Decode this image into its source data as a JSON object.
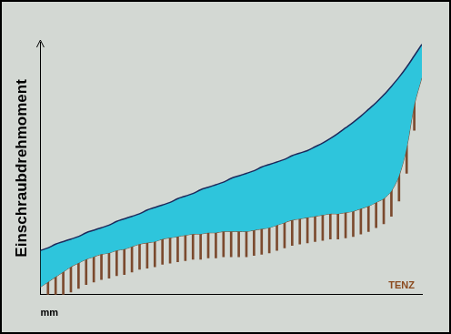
{
  "chart_data": {
    "type": "area",
    "y_label": "Einschraubdrehmoment",
    "x_label": "mm",
    "annotations": [
      "TENZ"
    ],
    "xlim": [
      0,
      100
    ],
    "ylim": [
      0,
      100
    ],
    "xticks": [],
    "yticks": [],
    "tick_labels": false,
    "grid": false,
    "series": [
      {
        "type": "area",
        "color": "#2ec5dc",
        "x": [
          0,
          2,
          4,
          6,
          8,
          10,
          12,
          14,
          16,
          18,
          20,
          22,
          24,
          26,
          28,
          30,
          32,
          34,
          36,
          38,
          40,
          42,
          44,
          46,
          48,
          50,
          52,
          54,
          56,
          58,
          60,
          62,
          64,
          66,
          68,
          70,
          72,
          74,
          76,
          78,
          80,
          82,
          84,
          86,
          88,
          90,
          92,
          94,
          96,
          98,
          100
        ],
        "values": [
          17.5,
          18.5,
          20,
          21,
          22,
          23,
          24.5,
          25.5,
          26.5,
          27.5,
          29,
          30,
          31,
          32,
          33.5,
          34.5,
          35.5,
          36.5,
          38,
          39,
          40,
          41.5,
          42.5,
          43.5,
          44.5,
          46,
          47,
          48,
          49,
          50.5,
          51.5,
          52.5,
          53.5,
          55,
          56,
          57,
          58.5,
          60,
          61.8,
          63.8,
          66,
          68.2,
          70.6,
          73.3,
          76,
          79,
          82.4,
          86,
          90,
          94.5,
          99
        ]
      },
      {
        "type": "line",
        "color": "#7b4a2e",
        "x": [
          0,
          2,
          4,
          6,
          8,
          10,
          12,
          14,
          16,
          18,
          20,
          22,
          24,
          26,
          28,
          30,
          32,
          34,
          36,
          38,
          40,
          42,
          44,
          46,
          48,
          50,
          52,
          54,
          56,
          58,
          60,
          62,
          64,
          66,
          68,
          70,
          72,
          74,
          76,
          78,
          80,
          82,
          84,
          86,
          88,
          90,
          92,
          94,
          96,
          98,
          100
        ],
        "values": [
          3,
          5,
          7,
          9,
          11,
          12.5,
          14,
          15,
          16,
          16.5,
          17.5,
          18,
          19,
          20,
          20.5,
          21,
          22,
          22.5,
          23,
          23.5,
          24,
          24,
          24.5,
          24.5,
          25,
          25,
          25,
          25,
          25.5,
          26,
          26.5,
          27.5,
          28.5,
          29.5,
          30,
          30.5,
          31,
          31.5,
          32,
          32,
          32.5,
          33,
          34,
          35,
          36.5,
          38,
          41,
          47,
          58,
          75,
          86
        ]
      },
      {
        "type": "bar",
        "color": "#7b4a2e",
        "x": [
          2,
          4,
          6,
          8,
          10,
          12,
          14,
          16,
          18,
          20,
          22,
          24,
          26,
          28,
          30,
          32,
          34,
          36,
          38,
          40,
          42,
          44,
          46,
          48,
          50,
          52,
          54,
          56,
          58,
          60,
          62,
          64,
          66,
          68,
          70,
          72,
          74,
          76,
          78,
          80,
          82,
          84,
          86,
          88,
          90,
          92,
          94,
          96,
          98
        ],
        "values": [
          [
            0,
            7
          ],
          [
            0,
            11
          ],
          [
            0,
            10
          ],
          [
            1,
            16
          ],
          [
            2.5,
            15.5
          ],
          [
            4,
            16
          ],
          [
            5,
            19
          ],
          [
            6,
            17
          ],
          [
            6.5,
            21.5
          ],
          [
            7.5,
            20.5
          ],
          [
            8,
            20
          ],
          [
            9,
            23
          ],
          [
            10,
            21
          ],
          [
            10.5,
            25.5
          ],
          [
            11,
            24
          ],
          [
            12,
            24
          ],
          [
            12.5,
            26.5
          ],
          [
            13,
            24
          ],
          [
            13.5,
            28.5
          ],
          [
            14,
            27
          ],
          [
            14,
            26
          ],
          [
            14.5,
            28.5
          ],
          [
            14.5,
            25.5
          ],
          [
            15,
            30
          ],
          [
            15,
            28
          ],
          [
            15,
            27
          ],
          [
            15,
            29
          ],
          [
            15.5,
            26.5
          ],
          [
            16,
            31
          ],
          [
            16.5,
            29.5
          ],
          [
            17.5,
            29.5
          ],
          [
            18.5,
            32.5
          ],
          [
            19.5,
            30.5
          ],
          [
            20,
            35
          ],
          [
            20.5,
            33.5
          ],
          [
            21,
            33
          ],
          [
            21.5,
            35.5
          ],
          [
            22,
            33
          ],
          [
            22,
            37
          ],
          [
            22.5,
            35.5
          ],
          [
            23,
            35
          ],
          [
            24,
            38
          ],
          [
            25,
            36
          ],
          [
            26.5,
            41.5
          ],
          [
            28,
            41
          ],
          [
            31,
            43
          ],
          [
            37,
            51
          ],
          [
            48,
            59
          ],
          [
            65,
            80
          ]
        ]
      }
    ]
  }
}
